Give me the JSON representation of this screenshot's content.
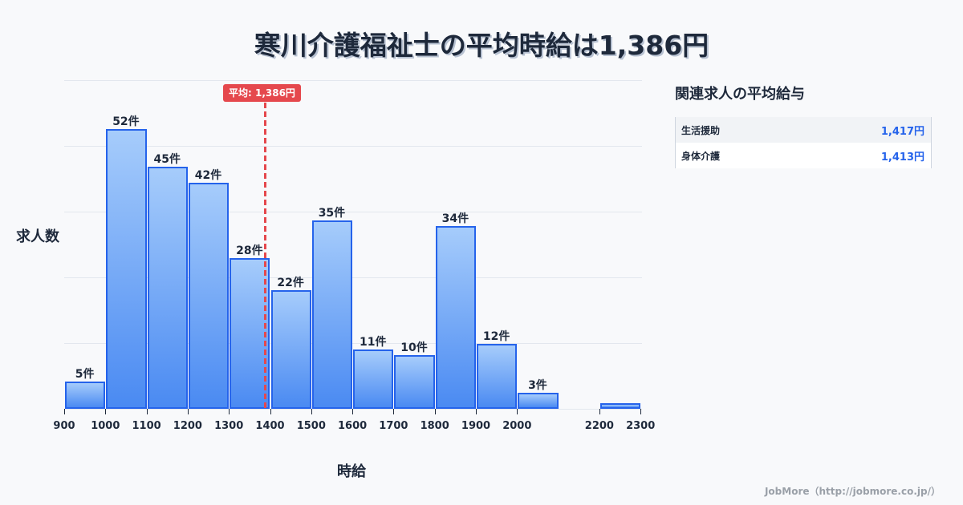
{
  "header": {
    "title": "寒川介護福祉士の平均時給は1,386円"
  },
  "chart_data": {
    "type": "bar",
    "title": "寒川介護福祉士の平均時給は1,386円",
    "xlabel": "時給",
    "ylabel": "求人数",
    "bins": [
      {
        "from": 900,
        "to": 1000,
        "count": 5,
        "label": "5件"
      },
      {
        "from": 1000,
        "to": 1100,
        "count": 52,
        "label": "52件"
      },
      {
        "from": 1100,
        "to": 1200,
        "count": 45,
        "label": "45件"
      },
      {
        "from": 1200,
        "to": 1300,
        "count": 42,
        "label": "42件"
      },
      {
        "from": 1300,
        "to": 1400,
        "count": 28,
        "label": "28件"
      },
      {
        "from": 1400,
        "to": 1500,
        "count": 22,
        "label": "22件"
      },
      {
        "from": 1500,
        "to": 1600,
        "count": 35,
        "label": "35件"
      },
      {
        "from": 1600,
        "to": 1700,
        "count": 11,
        "label": "11件"
      },
      {
        "from": 1700,
        "to": 1800,
        "count": 10,
        "label": "10件"
      },
      {
        "from": 1800,
        "to": 1900,
        "count": 34,
        "label": "34件"
      },
      {
        "from": 1900,
        "to": 2000,
        "count": 12,
        "label": "12件"
      },
      {
        "from": 2000,
        "to": 2100,
        "count": 3,
        "label": "3件"
      },
      {
        "from": 2200,
        "to": 2300,
        "count": 1,
        "label": ""
      }
    ],
    "categories": [
      "900-1000",
      "1000-1100",
      "1100-1200",
      "1200-1300",
      "1300-1400",
      "1400-1500",
      "1500-1600",
      "1600-1700",
      "1700-1800",
      "1800-1900",
      "1900-2000",
      "2000-2100",
      "2100-2200",
      "2200-2300"
    ],
    "values": [
      5,
      52,
      45,
      42,
      28,
      22,
      35,
      11,
      10,
      34,
      12,
      3,
      0,
      1
    ],
    "x_ticks": [
      "900",
      "1000",
      "1100",
      "1200",
      "1300",
      "1400",
      "1500",
      "1600",
      "1700",
      "1800",
      "1900",
      "2000",
      "2200",
      "2300"
    ],
    "xlim": [
      900,
      2300
    ],
    "ylim": [
      0,
      61
    ],
    "grid": true,
    "annotation": {
      "type": "vline",
      "x": 1386,
      "label": "平均: 1,386円",
      "color": "#e5484d"
    },
    "bar_color": "#4a8af2",
    "bar_border_color": "#2563eb"
  },
  "sidebar": {
    "title": "関連求人の平均給与",
    "rows": [
      {
        "name": "生活援助",
        "value": "1,417円"
      },
      {
        "name": "身体介護",
        "value": "1,413円"
      }
    ]
  },
  "footer": {
    "credit": "JobMore（http://jobmore.co.jp/）"
  }
}
